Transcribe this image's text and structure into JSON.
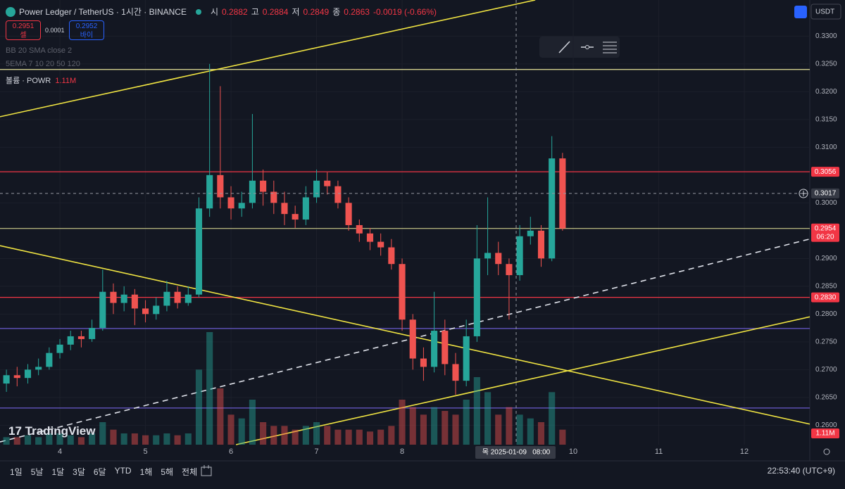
{
  "header": {
    "symbol": "Power Ledger / TetherUS · 1시간 · BINANCE",
    "ohlc": [
      {
        "label": "시",
        "value": 0.2882
      },
      {
        "label": "고",
        "value": 0.2884
      },
      {
        "label": "저",
        "value": 0.2849
      },
      {
        "label": "종",
        "value": 0.2863
      }
    ],
    "change": "-0.0019 (-0.66%)",
    "sell": {
      "price": 0.2951,
      "label": "셀"
    },
    "spread": 0.0001,
    "buy": {
      "price": 0.2952,
      "label": "바이"
    },
    "indicators": [
      "BB 20 SMA close 2",
      "5EMA 7 10 20 50 120"
    ],
    "volume_label": "볼륨 · POWR",
    "volume_value": "1.11M",
    "currency": "USDT"
  },
  "chart_data": {
    "type": "candlestick",
    "x": [
      3.375,
      3.5,
      3.625,
      3.75,
      3.875,
      4.0,
      4.125,
      4.25,
      4.375,
      4.5,
      4.625,
      4.75,
      4.875,
      5.0,
      5.125,
      5.25,
      5.375,
      5.5,
      5.625,
      5.75,
      5.875,
      6.0,
      6.125,
      6.25,
      6.375,
      6.5,
      6.625,
      6.75,
      6.875,
      7.0,
      7.125,
      7.25,
      7.375,
      7.5,
      7.625,
      7.75,
      7.875,
      8.0,
      8.125,
      8.25,
      8.375,
      8.5,
      8.625,
      8.75,
      8.875,
      9.0,
      9.125,
      9.25,
      9.375,
      9.5,
      9.625,
      9.75,
      9.875
    ],
    "open": [
      0.2675,
      0.269,
      0.2685,
      0.27,
      0.2705,
      0.273,
      0.2745,
      0.276,
      0.2755,
      0.2775,
      0.284,
      0.282,
      0.2835,
      0.281,
      0.28,
      0.2815,
      0.284,
      0.282,
      0.2835,
      0.299,
      0.305,
      0.301,
      0.299,
      0.3,
      0.304,
      0.302,
      0.3,
      0.298,
      0.297,
      0.301,
      0.304,
      0.303,
      0.3,
      0.296,
      0.2945,
      0.293,
      0.292,
      0.289,
      0.279,
      0.272,
      0.2705,
      0.277,
      0.271,
      0.268,
      0.276,
      0.29,
      0.291,
      0.289,
      0.287,
      0.294,
      0.295,
      0.29,
      0.308
    ],
    "high": [
      0.27,
      0.2705,
      0.271,
      0.272,
      0.274,
      0.2755,
      0.277,
      0.277,
      0.279,
      0.288,
      0.2855,
      0.285,
      0.2845,
      0.2825,
      0.283,
      0.286,
      0.285,
      0.285,
      0.301,
      0.325,
      0.321,
      0.303,
      0.302,
      0.316,
      0.306,
      0.304,
      0.302,
      0.2995,
      0.303,
      0.306,
      0.3055,
      0.304,
      0.301,
      0.297,
      0.2955,
      0.2945,
      0.2935,
      0.29,
      0.28,
      0.274,
      0.284,
      0.279,
      0.273,
      0.279,
      0.296,
      0.301,
      0.293,
      0.29,
      0.296,
      0.2975,
      0.296,
      0.312,
      0.309
    ],
    "low": [
      0.266,
      0.267,
      0.2675,
      0.269,
      0.27,
      0.272,
      0.2735,
      0.274,
      0.275,
      0.277,
      0.28,
      0.2805,
      0.278,
      0.2785,
      0.279,
      0.2805,
      0.281,
      0.2815,
      0.283,
      0.2975,
      0.299,
      0.297,
      0.2975,
      0.299,
      0.2995,
      0.298,
      0.296,
      0.2955,
      0.296,
      0.3,
      0.3015,
      0.299,
      0.295,
      0.293,
      0.2915,
      0.2905,
      0.288,
      0.277,
      0.27,
      0.268,
      0.2695,
      0.269,
      0.2655,
      0.267,
      0.275,
      0.287,
      0.287,
      0.279,
      0.286,
      0.2925,
      0.2885,
      0.2895,
      0.295
    ],
    "close": [
      0.269,
      0.2685,
      0.27,
      0.2705,
      0.273,
      0.2745,
      0.276,
      0.2755,
      0.2775,
      0.284,
      0.282,
      0.2835,
      0.281,
      0.28,
      0.2815,
      0.284,
      0.282,
      0.2835,
      0.299,
      0.305,
      0.301,
      0.299,
      0.3,
      0.304,
      0.302,
      0.3,
      0.298,
      0.297,
      0.301,
      0.304,
      0.303,
      0.3,
      0.296,
      0.2945,
      0.293,
      0.292,
      0.289,
      0.279,
      0.272,
      0.2705,
      0.277,
      0.271,
      0.268,
      0.276,
      0.29,
      0.291,
      0.289,
      0.287,
      0.294,
      0.295,
      0.29,
      0.308,
      0.2954
    ],
    "volume": [
      2,
      2,
      2.5,
      2,
      3,
      3,
      2.5,
      2,
      3,
      6,
      4,
      3,
      3,
      2.5,
      2.5,
      3,
      2.5,
      3,
      20,
      30,
      15,
      8,
      7,
      12,
      6,
      5,
      5,
      4,
      5,
      6,
      5,
      4,
      4,
      4,
      3.5,
      4,
      5,
      12,
      10,
      8,
      10,
      9,
      8,
      12,
      18,
      14,
      8,
      10,
      8,
      7,
      6,
      14,
      4
    ],
    "up_color": "#26a69a",
    "down_color": "#ef5350",
    "xlim": [
      3.3,
      12.765
    ],
    "xticks": [
      4,
      5,
      6,
      7,
      8,
      10,
      11,
      12
    ],
    "ylim": [
      0.2565,
      0.3365
    ],
    "yticks": [
      {
        "value": 0.33,
        "label": "0.3300"
      },
      {
        "value": 0.325,
        "label": "0.3250"
      },
      {
        "value": 0.32,
        "label": "0.3200"
      },
      {
        "value": 0.315,
        "label": "0.3150"
      },
      {
        "value": 0.31,
        "label": "0.3100"
      },
      {
        "value": 0.3,
        "label": "0.3000"
      },
      {
        "value": 0.29,
        "label": "0.2900"
      },
      {
        "value": 0.285,
        "label": "0.2850"
      },
      {
        "value": 0.28,
        "label": "0.2800"
      },
      {
        "value": 0.275,
        "label": "0.2750"
      },
      {
        "value": 0.27,
        "label": "0.2700"
      },
      {
        "value": 0.265,
        "label": "0.2650"
      },
      {
        "value": 0.26,
        "label": "0.2600"
      }
    ],
    "grid": true,
    "levels": [
      {
        "price": 0.3056,
        "color": "#f23645",
        "tag": true
      },
      {
        "price": {
          "value": 0.283,
          "label": "0.2830"
        },
        "color": "#f23645",
        "tag": true
      },
      {
        "price": 0.324,
        "color": "#e8e59a",
        "tag": false
      },
      {
        "price": 0.2774,
        "color": "#6a5acd",
        "tag": false
      },
      {
        "price": 0.2631,
        "color": "#6a5acd",
        "tag": false
      }
    ],
    "trendlines": [
      {
        "x1": 3.3,
        "y1": 0.3155,
        "x2": 9.556,
        "y2": 0.3365,
        "color": "#f0e442",
        "dashed": false
      },
      {
        "x1": 3.3,
        "y1": 0.2923,
        "x2": 12.765,
        "y2": 0.2602,
        "color": "#f0e442",
        "dashed": false
      },
      {
        "x1": 6.058,
        "y1": 0.2565,
        "x2": 12.765,
        "y2": 0.2795,
        "color": "#f0e442",
        "dashed": false
      },
      {
        "x1": 3.3,
        "y1": 0.257,
        "x2": 12.765,
        "y2": 0.2935,
        "color": "#e0e3eb",
        "dashed": true
      }
    ],
    "last_price_color": "#f23645",
    "countdown": "06:20",
    "crosshair": {
      "x": 9.333,
      "price": 0.3017,
      "label": "목 2025-01-09   08:00"
    }
  },
  "footer": {
    "ranges": [
      "1일",
      "5날",
      "1달",
      "3달",
      "6달",
      "YTD",
      "1해",
      "5해",
      "전체"
    ],
    "clock": "22:53:40 (UTC+9)"
  },
  "watermark": "TradingView"
}
